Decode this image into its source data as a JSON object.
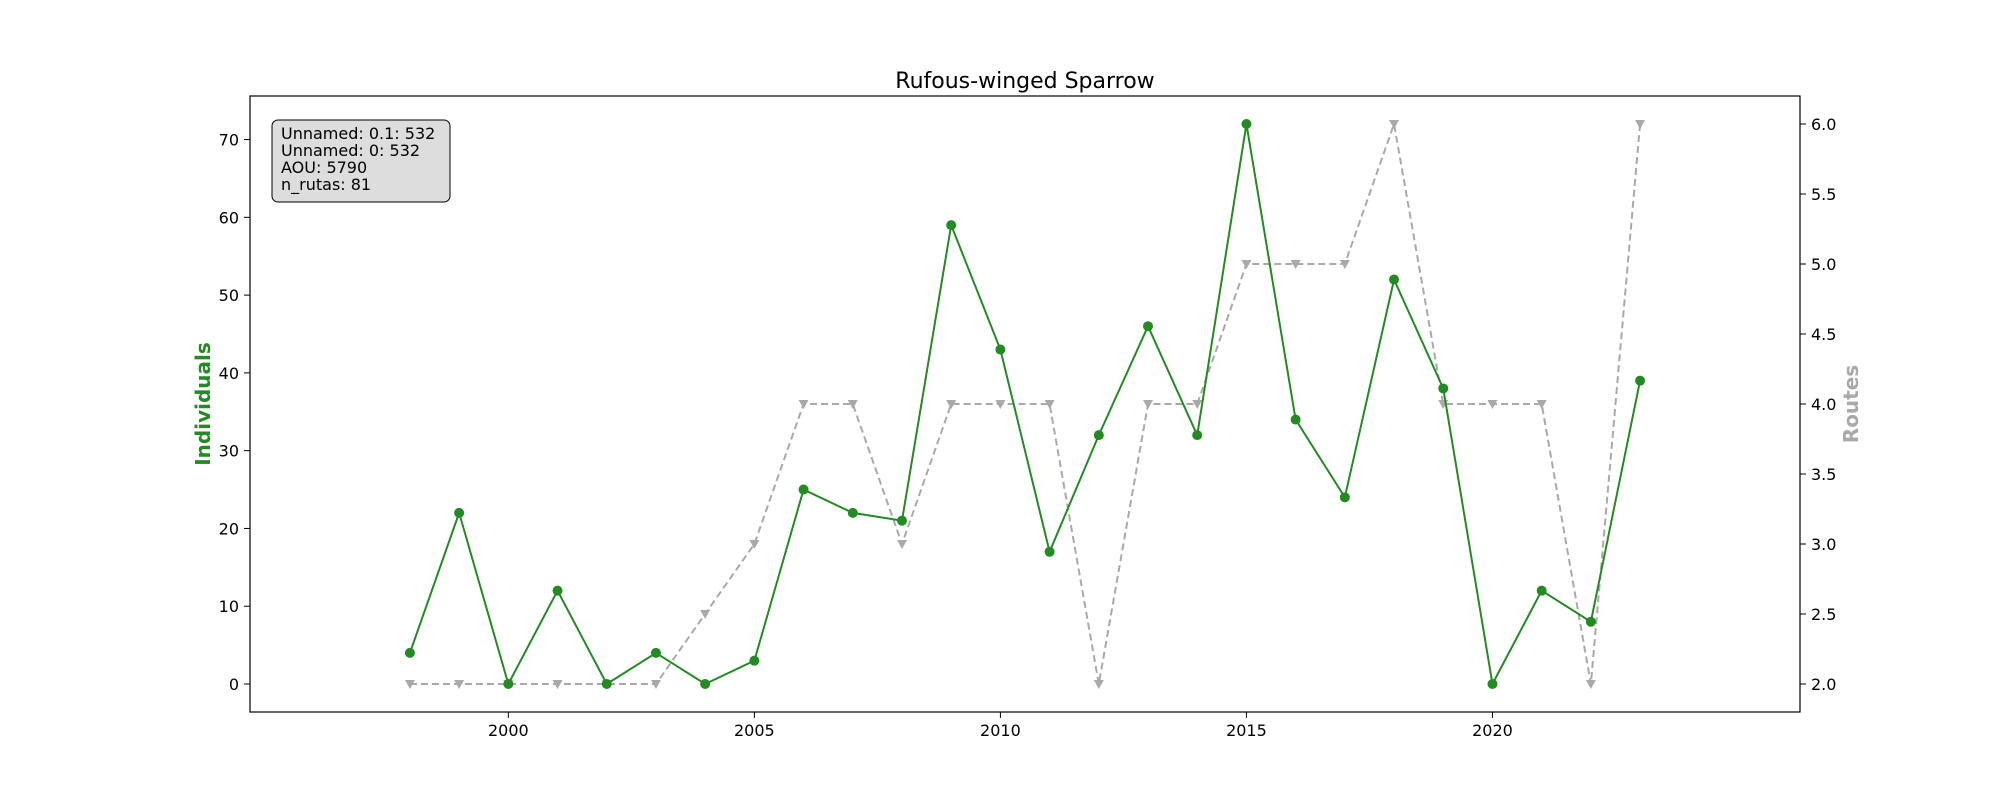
{
  "chart_data": {
    "type": "line",
    "title": "Rufous-winged Sparrow",
    "xlabel": "",
    "ylabel_left": "Individuals",
    "ylabel_right": "Routes",
    "x": [
      1998,
      1999,
      2000,
      2001,
      2002,
      2003,
      2004,
      2005,
      2006,
      2007,
      2008,
      2009,
      2010,
      2011,
      2012,
      2013,
      2014,
      2015,
      2016,
      2017,
      2018,
      2019,
      2020,
      2021,
      2022,
      2023
    ],
    "xlim": [
      1994.75,
      2026.25
    ],
    "ylim_left": [
      -3.6,
      75.6
    ],
    "ylim_right": [
      1.8,
      6.2
    ],
    "x_ticks": [
      2000,
      2005,
      2010,
      2015,
      2020
    ],
    "y_ticks_left": [
      0,
      10,
      20,
      30,
      40,
      50,
      60,
      70
    ],
    "y_ticks_right": [
      "2.0",
      "2.5",
      "3.0",
      "3.5",
      "4.0",
      "4.5",
      "5.0",
      "5.5",
      "6.0"
    ],
    "series": [
      {
        "name": "Individuals",
        "axis": "left",
        "color": "#228b22",
        "style": "solid",
        "marker": "circle",
        "values": [
          4,
          22,
          0,
          12,
          0,
          4,
          0,
          3,
          25,
          22,
          21,
          59,
          43,
          17,
          32,
          46,
          32,
          72,
          34,
          24,
          52,
          38,
          0,
          12,
          8,
          39
        ]
      },
      {
        "name": "Routes",
        "axis": "right",
        "color": "#a9a9a9",
        "style": "dashed",
        "marker": "triangle-down",
        "values": [
          2,
          2,
          2,
          2,
          2,
          2,
          2.5,
          3,
          4,
          4,
          3,
          4,
          4,
          4,
          2,
          4,
          4,
          5,
          5,
          5,
          6,
          4,
          4,
          4,
          2,
          6
        ]
      }
    ],
    "grid": false,
    "info_box": {
      "position": "top-left",
      "lines": [
        "Unnamed: 0.1: 532",
        "Unnamed: 0: 532",
        "AOU: 5790",
        "n_rutas: 81"
      ]
    }
  }
}
